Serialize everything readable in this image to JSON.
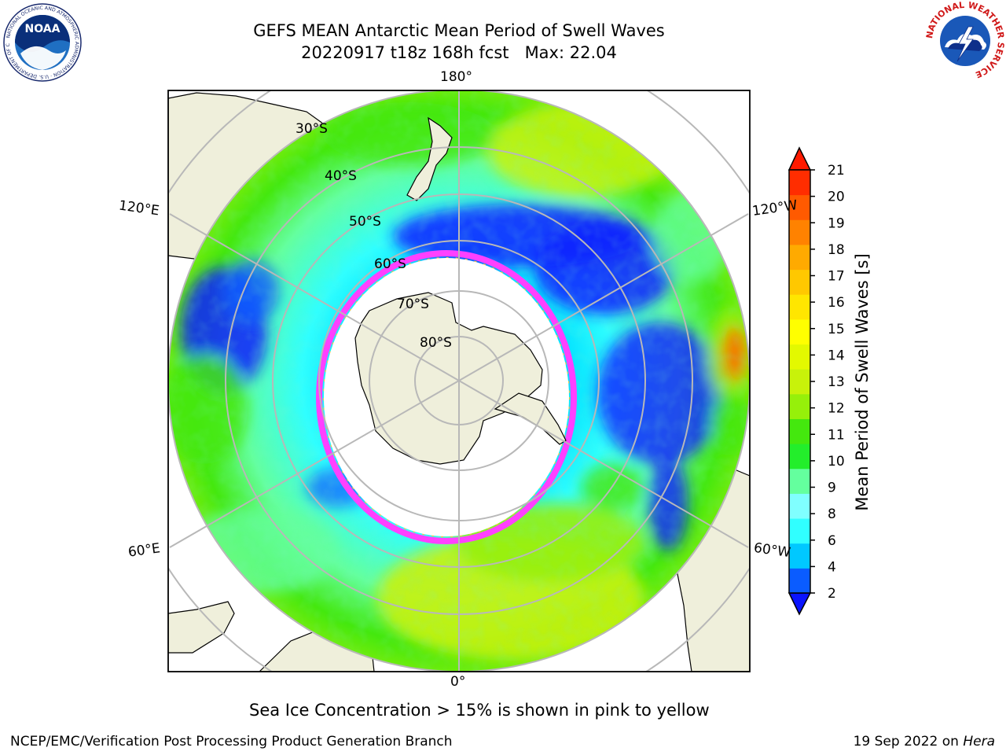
{
  "header": {
    "title_line1": "GEFS MEAN Antarctic Mean Period of Swell Waves",
    "title_line2": "20220917 t18z 168h fcst   Max: 22.04",
    "noaa_logo_text": "NOAA",
    "noaa_ring_text": "NATIONAL OCEANIC AND ATMOSPHERIC ADMINISTRATION · U.S. DEPARTMENT OF COMMERCE",
    "nws_ring_text": "NATIONAL WEATHER SERVICE"
  },
  "map": {
    "projection": "south polar stereographic",
    "longitude_labels": {
      "top": "180°",
      "bottom": "0°",
      "upper_left": "120°E",
      "upper_right": "120°W",
      "lower_left": "60°E",
      "lower_right": "60°W"
    },
    "latitude_labels": [
      "30°S",
      "40°S",
      "50°S",
      "60°S",
      "70°S",
      "80°S"
    ]
  },
  "colorbar": {
    "label": "Mean Period of Swell Waves [s]",
    "ticks": [
      "2",
      "4",
      "6",
      "8",
      "9",
      "10",
      "11",
      "12",
      "13",
      "14",
      "15",
      "16",
      "17",
      "18",
      "19",
      "20",
      "21"
    ],
    "colors": [
      "#0a5cff",
      "#00c8ff",
      "#30ffff",
      "#80ffff",
      "#64ff9e",
      "#23ee2b",
      "#44e80e",
      "#96f00a",
      "#c8f20a",
      "#e3f900",
      "#ffff00",
      "#ffe600",
      "#ffc800",
      "#ffaa00",
      "#ff8200",
      "#ff5a00",
      "#ff2d00"
    ],
    "under_color": "#0a14ff",
    "over_color": "#ff1a00"
  },
  "caption": "Sea Ice Concentration > 15% is shown in pink to yellow",
  "footer": {
    "left": "NCEP/EMC/Verification Post Processing Product Generation Branch",
    "right_prefix": "19 Sep 2022 on ",
    "right_host": "Hera"
  }
}
